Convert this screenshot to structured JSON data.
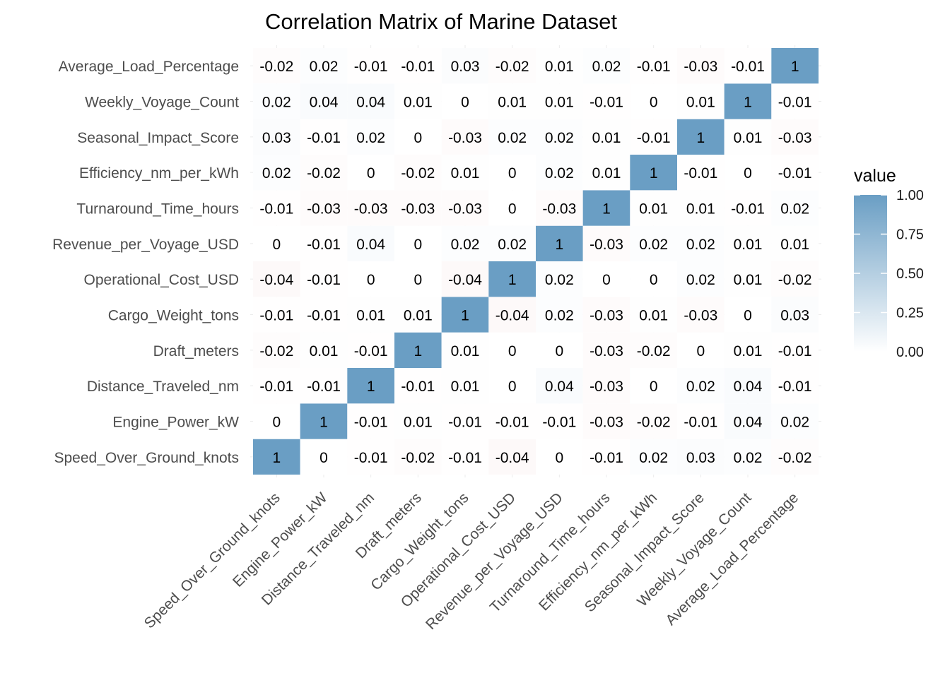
{
  "chart_data": {
    "type": "heatmap",
    "title": "Correlation Matrix of Marine Dataset",
    "xlabel": "",
    "ylabel": "",
    "variables": [
      "Speed_Over_Ground_knots",
      "Engine_Power_kW",
      "Distance_Traveled_nm",
      "Draft_meters",
      "Cargo_Weight_tons",
      "Operational_Cost_USD",
      "Revenue_per_Voyage_USD",
      "Turnaround_Time_hours",
      "Efficiency_nm_per_kWh",
      "Seasonal_Impact_Score",
      "Weekly_Voyage_Count",
      "Average_Load_Percentage"
    ],
    "matrix": [
      [
        1,
        0,
        -0.01,
        -0.02,
        -0.01,
        -0.04,
        0,
        -0.01,
        0.02,
        0.03,
        0.02,
        -0.02
      ],
      [
        0,
        1,
        -0.01,
        0.01,
        -0.01,
        -0.01,
        -0.01,
        -0.03,
        -0.02,
        -0.01,
        0.04,
        0.02
      ],
      [
        -0.01,
        -0.01,
        1,
        -0.01,
        0.01,
        0,
        0.04,
        -0.03,
        0,
        0.02,
        0.04,
        -0.01
      ],
      [
        -0.02,
        0.01,
        -0.01,
        1,
        0.01,
        0,
        0,
        -0.03,
        -0.02,
        0,
        0.01,
        -0.01
      ],
      [
        -0.01,
        -0.01,
        0.01,
        0.01,
        1,
        -0.04,
        0.02,
        -0.03,
        0.01,
        -0.03,
        0,
        0.03
      ],
      [
        -0.04,
        -0.01,
        0,
        0,
        -0.04,
        1,
        0.02,
        0,
        0,
        0.02,
        0.01,
        -0.02
      ],
      [
        0,
        -0.01,
        0.04,
        0,
        0.02,
        0.02,
        1,
        -0.03,
        0.02,
        0.02,
        0.01,
        0.01
      ],
      [
        -0.01,
        -0.03,
        -0.03,
        -0.03,
        -0.03,
        0,
        -0.03,
        1,
        0.01,
        0.01,
        -0.01,
        0.02
      ],
      [
        0.02,
        -0.02,
        0,
        -0.02,
        0.01,
        0,
        0.02,
        0.01,
        1,
        -0.01,
        0,
        -0.01
      ],
      [
        0.03,
        -0.01,
        0.02,
        0,
        -0.03,
        0.02,
        0.02,
        0.01,
        -0.01,
        1,
        0.01,
        -0.03
      ],
      [
        0.02,
        0.04,
        0.04,
        0.01,
        0,
        0.01,
        0.01,
        -0.01,
        0,
        0.01,
        1,
        -0.01
      ],
      [
        -0.02,
        0.02,
        -0.01,
        -0.01,
        0.03,
        -0.02,
        0.01,
        0.02,
        -0.01,
        -0.03,
        -0.01,
        1
      ]
    ],
    "legend": {
      "title": "value",
      "placement": "right",
      "ticks": [
        "1.00",
        "0.75",
        "0.50",
        "0.25",
        "0.00"
      ],
      "range": [
        0,
        1
      ],
      "high_color": "#6a9ec4",
      "low_color": "#ffffff",
      "negative_color": "#d9706a"
    },
    "grid": true
  }
}
